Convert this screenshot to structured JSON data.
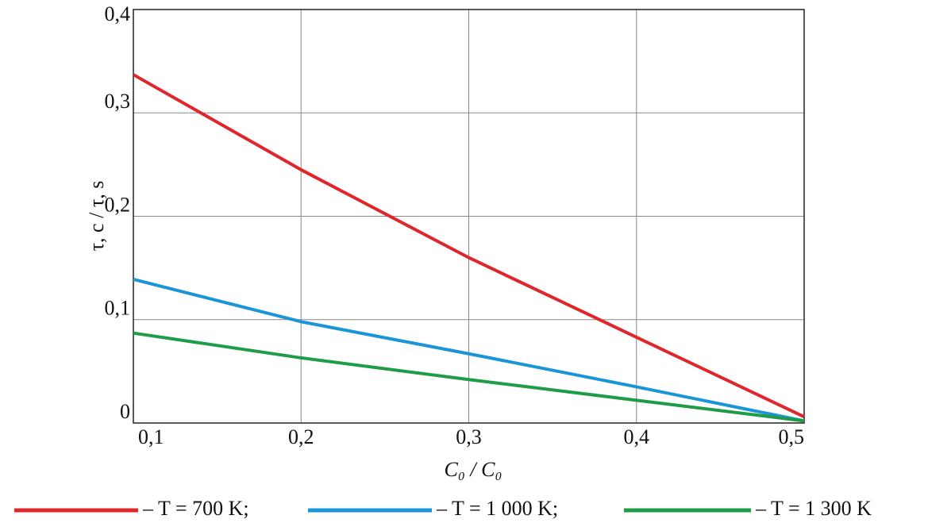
{
  "chart_data": {
    "type": "line",
    "x_label": "C₀ / C₀",
    "y_label": "τ, c / τ, s",
    "x": [
      0.1,
      0.2,
      0.3,
      0.4,
      0.5
    ],
    "series": [
      {
        "name": "– T = 700 K;",
        "color": "#e0262b",
        "values": [
          0.337,
          0.245,
          0.16,
          0.083,
          0.006
        ]
      },
      {
        "name": "– T = 1 000 K;",
        "color": "#1a95d6",
        "values": [
          0.139,
          0.098,
          0.067,
          0.035,
          0.002
        ]
      },
      {
        "name": "– T = 1 300 K",
        "color": "#1e9c48",
        "values": [
          0.087,
          0.063,
          0.042,
          0.022,
          0.002
        ]
      }
    ],
    "xlim": [
      0.1,
      0.5
    ],
    "ylim": [
      0,
      0.4
    ],
    "xticks": [
      {
        "value": 0.1,
        "label": "0,1"
      },
      {
        "value": 0.2,
        "label": "0,2"
      },
      {
        "value": 0.3,
        "label": "0,3"
      },
      {
        "value": 0.4,
        "label": "0,4"
      },
      {
        "value": 0.5,
        "label": "0,5"
      }
    ],
    "yticks": [
      0,
      {
        "value": 0.1,
        "label": "0,1"
      },
      {
        "value": 0.2,
        "label": "0,2"
      },
      {
        "value": 0.3,
        "label": "0,3"
      },
      {
        "value": 0.4,
        "label": "0,4"
      }
    ],
    "grid": true
  }
}
